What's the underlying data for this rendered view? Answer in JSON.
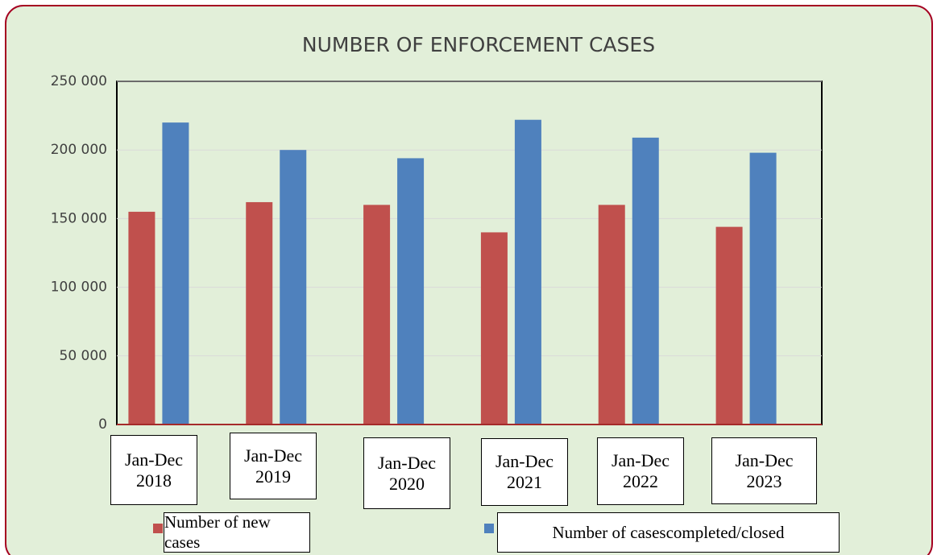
{
  "chart_data": {
    "type": "bar",
    "title": "NUMBER OF ENFORCEMENT CASES",
    "categories": [
      "Jan-Dec 2018",
      "Jan-Dec 2019",
      "Jan-Dec 2020",
      "Jan-Dec 2021",
      "Jan-Dec 2022",
      "Jan-Dec 2023"
    ],
    "series": [
      {
        "name": "Number of new cases",
        "color": "#c0504d",
        "values": [
          155000,
          162000,
          160000,
          140000,
          160000,
          144000
        ]
      },
      {
        "name": "Number of casescompleted/closed",
        "color": "#4f81bd",
        "values": [
          220000,
          200000,
          194000,
          222000,
          209000,
          198000
        ]
      }
    ],
    "ylim": [
      0,
      250000
    ],
    "yticks": [
      0,
      {
        "value": 50000,
        "label": "50 000"
      },
      {
        "value": 100000,
        "label": "100 000"
      },
      {
        "value": 150000,
        "label": "150 000"
      },
      {
        "value": 200000,
        "label": "200 000"
      },
      {
        "value": 250000,
        "label": "250 000"
      }
    ],
    "grid": true
  }
}
